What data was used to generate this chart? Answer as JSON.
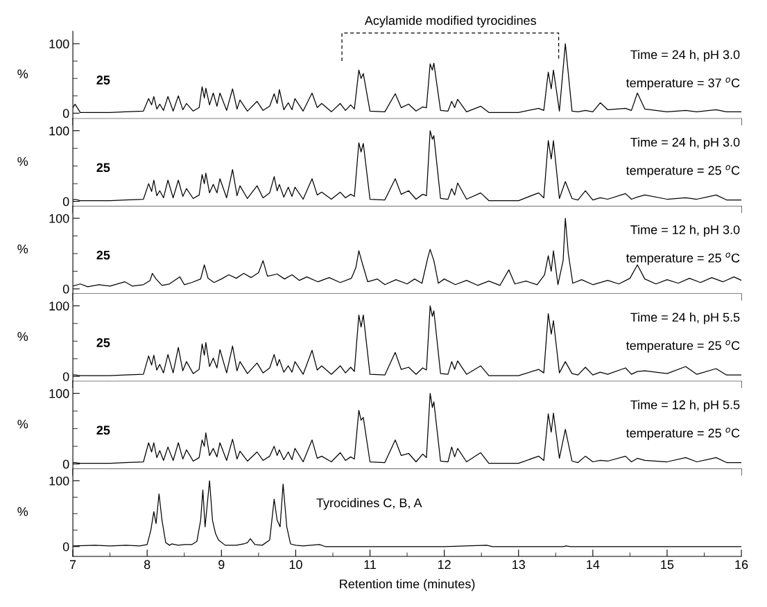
{
  "chart_data": [
    {
      "type": "line",
      "xlim": [
        7,
        16
      ],
      "ylim": [
        -8,
        118
      ],
      "xticks": [
        7,
        {
          "value": 7.5,
          "label": null
        },
        8,
        {
          "value": 8.5,
          "label": null
        },
        9,
        {
          "value": 9.5,
          "label": null
        },
        10,
        {
          "value": 10.5,
          "label": null
        },
        11,
        {
          "value": 11.5,
          "label": null
        },
        12,
        {
          "value": 12.5,
          "label": null
        },
        13,
        {
          "value": 13.5,
          "label": null
        },
        14,
        {
          "value": 14.5,
          "label": null
        },
        15,
        {
          "value": 15.5,
          "label": null
        },
        16
      ],
      "yticks": [
        0,
        {
          "value": 25,
          "label": null
        },
        {
          "value": 50,
          "label": null
        },
        {
          "value": 75,
          "label": null
        },
        100
      ],
      "tick_labels": "y",
      "ylabel": "%",
      "annotations": [
        "25",
        "Time = 24 h, pH 3.0",
        "temperature = 37 $^{o}$C"
      ],
      "title": "Acylamide modified tyrocidines",
      "x": [
        7.0,
        7.03,
        7.1,
        7.5,
        7.7,
        7.95,
        8.02,
        8.06,
        8.09,
        8.13,
        8.17,
        8.22,
        8.28,
        8.35,
        8.42,
        8.48,
        8.53,
        8.62,
        8.7,
        8.74,
        8.77,
        8.79,
        8.84,
        8.89,
        8.94,
        8.98,
        9.07,
        9.15,
        9.21,
        9.25,
        9.35,
        9.48,
        9.56,
        9.65,
        9.71,
        9.75,
        9.78,
        9.84,
        9.9,
        9.95,
        9.99,
        10.1,
        10.22,
        10.29,
        10.35,
        10.48,
        10.6,
        10.67,
        10.74,
        10.79,
        10.85,
        10.88,
        10.91,
        11.0,
        11.2,
        11.34,
        11.42,
        11.52,
        11.62,
        11.71,
        11.76,
        11.81,
        11.84,
        11.86,
        11.95,
        12.05,
        12.1,
        12.14,
        12.18,
        12.3,
        12.49,
        12.6,
        13.0,
        13.27,
        13.34,
        13.4,
        13.44,
        13.47,
        13.55,
        13.63,
        13.72,
        13.8,
        13.9,
        14.0,
        14.1,
        14.2,
        14.44,
        14.52,
        14.6,
        14.7,
        15.0,
        15.25,
        15.4,
        15.66,
        15.8,
        16.0
      ],
      "series": [
        {
          "color": "#000000",
          "values": [
            8,
            13,
            1,
            1,
            2,
            3,
            21,
            12,
            24,
            6,
            13,
            4,
            24,
            3,
            25,
            5,
            14,
            3,
            8,
            38,
            22,
            36,
            12,
            29,
            10,
            29,
            4,
            35,
            6,
            19,
            3,
            17,
            4,
            10,
            28,
            14,
            34,
            5,
            15,
            5,
            21,
            3,
            29,
            8,
            14,
            2,
            14,
            4,
            12,
            6,
            62,
            50,
            57,
            3,
            2,
            28,
            8,
            13,
            3,
            9,
            8,
            71,
            62,
            72,
            4,
            3,
            17,
            8,
            20,
            2,
            10,
            1,
            1,
            7,
            4,
            59,
            35,
            62,
            3,
            100,
            3,
            2,
            4,
            2,
            15,
            5,
            7,
            4,
            29,
            6,
            2,
            4,
            2,
            5,
            2,
            2
          ]
        }
      ]
    },
    {
      "type": "line",
      "xlim": [
        7,
        16
      ],
      "ylim": [
        -7,
        117
      ],
      "xticks": [
        7,
        {
          "value": 7.5,
          "label": null
        },
        8,
        {
          "value": 8.5,
          "label": null
        },
        9,
        {
          "value": 9.5,
          "label": null
        },
        10,
        {
          "value": 10.5,
          "label": null
        },
        11,
        {
          "value": 11.5,
          "label": null
        },
        12,
        {
          "value": 12.5,
          "label": null
        },
        13,
        {
          "value": 13.5,
          "label": null
        },
        14,
        {
          "value": 14.5,
          "label": null
        },
        15,
        {
          "value": 15.5,
          "label": null
        },
        16
      ],
      "yticks": [
        0,
        {
          "value": 25,
          "label": null
        },
        {
          "value": 50,
          "label": null
        },
        {
          "value": 75,
          "label": null
        },
        100
      ],
      "tick_labels": "y",
      "ylabel": "%",
      "annotations": [
        "25",
        "Time = 24 h, pH 3.0",
        "temperature = 25 $^{o}$C"
      ],
      "x": [
        7.0,
        7.03,
        7.1,
        7.5,
        7.7,
        7.95,
        8.02,
        8.06,
        8.09,
        8.13,
        8.17,
        8.22,
        8.28,
        8.35,
        8.42,
        8.48,
        8.53,
        8.62,
        8.7,
        8.74,
        8.77,
        8.79,
        8.84,
        8.89,
        8.94,
        8.98,
        9.07,
        9.15,
        9.21,
        9.25,
        9.35,
        9.48,
        9.56,
        9.65,
        9.71,
        9.75,
        9.78,
        9.84,
        9.9,
        9.95,
        9.99,
        10.1,
        10.22,
        10.29,
        10.35,
        10.48,
        10.6,
        10.67,
        10.74,
        10.79,
        10.85,
        10.88,
        10.91,
        11.0,
        11.2,
        11.34,
        11.42,
        11.52,
        11.62,
        11.71,
        11.76,
        11.81,
        11.84,
        11.86,
        11.95,
        12.05,
        12.1,
        12.14,
        12.18,
        12.3,
        12.49,
        12.6,
        13.0,
        13.27,
        13.34,
        13.4,
        13.44,
        13.47,
        13.55,
        13.63,
        13.72,
        13.8,
        13.9,
        14.0,
        14.1,
        14.2,
        14.44,
        14.52,
        14.6,
        14.7,
        15.0,
        15.25,
        15.4,
        15.66,
        15.8,
        16.0
      ],
      "series": [
        {
          "color": "#000000",
          "values": [
            2,
            3,
            1,
            1,
            2,
            3,
            25,
            14,
            30,
            8,
            15,
            5,
            30,
            5,
            30,
            7,
            18,
            4,
            9,
            38,
            25,
            40,
            12,
            24,
            12,
            32,
            5,
            45,
            8,
            22,
            4,
            22,
            5,
            12,
            35,
            15,
            24,
            6,
            20,
            7,
            20,
            3,
            32,
            9,
            13,
            3,
            13,
            5,
            10,
            7,
            83,
            70,
            82,
            3,
            2,
            32,
            10,
            15,
            3,
            10,
            8,
            100,
            88,
            93,
            4,
            3,
            18,
            9,
            26,
            3,
            12,
            1,
            1,
            12,
            5,
            86,
            60,
            86,
            4,
            28,
            4,
            2,
            15,
            2,
            5,
            3,
            11,
            3,
            6,
            9,
            3,
            5,
            3,
            9,
            2,
            2
          ]
        }
      ]
    },
    {
      "type": "line",
      "xlim": [
        7,
        16
      ],
      "ylim": [
        -7,
        117
      ],
      "xticks": [
        7,
        {
          "value": 7.5,
          "label": null
        },
        8,
        {
          "value": 8.5,
          "label": null
        },
        9,
        {
          "value": 9.5,
          "label": null
        },
        10,
        {
          "value": 10.5,
          "label": null
        },
        11,
        {
          "value": 11.5,
          "label": null
        },
        12,
        {
          "value": 12.5,
          "label": null
        },
        13,
        {
          "value": 13.5,
          "label": null
        },
        14,
        {
          "value": 14.5,
          "label": null
        },
        15,
        {
          "value": 15.5,
          "label": null
        },
        16
      ],
      "yticks": [
        0,
        {
          "value": 25,
          "label": null
        },
        {
          "value": 50,
          "label": null
        },
        {
          "value": 75,
          "label": null
        },
        100
      ],
      "tick_labels": "y",
      "ylabel": "%",
      "annotations": [
        "25",
        "Time = 12 h, pH 3.0",
        "temperature = 25 $^{o}$C"
      ],
      "x": [
        7.0,
        7.1,
        7.2,
        7.35,
        7.5,
        7.7,
        7.8,
        7.95,
        8.04,
        8.07,
        8.12,
        8.2,
        8.3,
        8.44,
        8.5,
        8.6,
        8.72,
        8.77,
        8.82,
        8.9,
        9.0,
        9.1,
        9.2,
        9.3,
        9.4,
        9.5,
        9.56,
        9.62,
        9.75,
        9.85,
        9.95,
        10.05,
        10.15,
        10.3,
        10.45,
        10.6,
        10.75,
        10.81,
        10.85,
        10.9,
        10.97,
        11.1,
        11.2,
        11.35,
        11.5,
        11.6,
        11.7,
        11.78,
        11.81,
        11.86,
        11.92,
        12.0,
        12.15,
        12.3,
        12.45,
        12.6,
        12.75,
        12.87,
        12.95,
        13.1,
        13.25,
        13.35,
        13.4,
        13.44,
        13.47,
        13.53,
        13.6,
        13.63,
        13.67,
        13.73,
        13.85,
        14.0,
        14.2,
        14.35,
        14.5,
        14.6,
        14.7,
        14.85,
        15.0,
        15.15,
        15.3,
        15.45,
        15.6,
        15.75,
        15.9,
        16.0
      ],
      "series": [
        {
          "color": "#000000",
          "values": [
            4,
            7,
            3,
            6,
            4,
            10,
            4,
            6,
            12,
            22,
            14,
            5,
            7,
            17,
            6,
            9,
            14,
            34,
            15,
            9,
            14,
            20,
            15,
            22,
            16,
            23,
            40,
            18,
            21,
            14,
            20,
            12,
            17,
            10,
            16,
            9,
            15,
            30,
            54,
            35,
            10,
            14,
            6,
            13,
            7,
            14,
            8,
            45,
            56,
            40,
            8,
            14,
            6,
            12,
            5,
            11,
            5,
            27,
            7,
            11,
            6,
            20,
            47,
            25,
            54,
            6,
            40,
            100,
            50,
            8,
            13,
            6,
            12,
            7,
            15,
            34,
            14,
            7,
            13,
            8,
            15,
            9,
            16,
            10,
            17,
            12
          ]
        }
      ]
    },
    {
      "type": "line",
      "xlim": [
        7,
        16
      ],
      "ylim": [
        -7,
        117
      ],
      "xticks": [
        7,
        {
          "value": 7.5,
          "label": null
        },
        8,
        {
          "value": 8.5,
          "label": null
        },
        9,
        {
          "value": 9.5,
          "label": null
        },
        10,
        {
          "value": 10.5,
          "label": null
        },
        11,
        {
          "value": 11.5,
          "label": null
        },
        12,
        {
          "value": 12.5,
          "label": null
        },
        13,
        {
          "value": 13.5,
          "label": null
        },
        14,
        {
          "value": 14.5,
          "label": null
        },
        15,
        {
          "value": 15.5,
          "label": null
        },
        16
      ],
      "yticks": [
        0,
        {
          "value": 25,
          "label": null
        },
        {
          "value": 50,
          "label": null
        },
        {
          "value": 75,
          "label": null
        },
        100
      ],
      "tick_labels": "y",
      "ylabel": "%",
      "annotations": [
        "25",
        "Time = 24 h, pH 5.5",
        "temperature = 25 $^{o}$C"
      ],
      "x": [
        7.0,
        7.03,
        7.1,
        7.5,
        7.7,
        7.95,
        8.02,
        8.06,
        8.09,
        8.13,
        8.17,
        8.22,
        8.28,
        8.35,
        8.42,
        8.48,
        8.53,
        8.62,
        8.7,
        8.74,
        8.77,
        8.79,
        8.84,
        8.89,
        8.94,
        8.98,
        9.07,
        9.15,
        9.21,
        9.25,
        9.35,
        9.48,
        9.56,
        9.65,
        9.71,
        9.75,
        9.78,
        9.84,
        9.9,
        9.95,
        9.99,
        10.1,
        10.22,
        10.29,
        10.35,
        10.48,
        10.6,
        10.67,
        10.74,
        10.79,
        10.85,
        10.88,
        10.91,
        11.0,
        11.2,
        11.34,
        11.42,
        11.52,
        11.62,
        11.71,
        11.76,
        11.81,
        11.84,
        11.86,
        11.95,
        12.05,
        12.1,
        12.14,
        12.18,
        12.3,
        12.49,
        12.6,
        13.0,
        13.27,
        13.34,
        13.4,
        13.44,
        13.47,
        13.55,
        13.63,
        13.72,
        13.8,
        13.9,
        14.0,
        14.1,
        14.2,
        14.44,
        14.52,
        14.6,
        14.7,
        15.0,
        15.25,
        15.4,
        15.66,
        15.8,
        16.0
      ],
      "series": [
        {
          "color": "#000000",
          "values": [
            2,
            2,
            1,
            1,
            2,
            3,
            29,
            16,
            30,
            9,
            17,
            5,
            31,
            5,
            41,
            8,
            21,
            4,
            10,
            46,
            30,
            48,
            14,
            26,
            12,
            38,
            5,
            43,
            8,
            21,
            4,
            19,
            5,
            12,
            31,
            15,
            24,
            6,
            15,
            6,
            21,
            3,
            37,
            9,
            15,
            3,
            15,
            5,
            13,
            7,
            87,
            70,
            87,
            3,
            2,
            34,
            10,
            13,
            3,
            12,
            9,
            100,
            85,
            93,
            4,
            3,
            21,
            10,
            22,
            3,
            15,
            1,
            1,
            10,
            5,
            89,
            60,
            79,
            5,
            21,
            4,
            2,
            13,
            2,
            6,
            3,
            12,
            3,
            7,
            8,
            4,
            14,
            3,
            11,
            2,
            2
          ]
        }
      ]
    },
    {
      "type": "line",
      "xlim": [
        7,
        16
      ],
      "ylim": [
        -7,
        117
      ],
      "xticks": [
        7,
        {
          "value": 7.5,
          "label": null
        },
        8,
        {
          "value": 8.5,
          "label": null
        },
        9,
        {
          "value": 9.5,
          "label": null
        },
        10,
        {
          "value": 10.5,
          "label": null
        },
        11,
        {
          "value": 11.5,
          "label": null
        },
        12,
        {
          "value": 12.5,
          "label": null
        },
        13,
        {
          "value": 13.5,
          "label": null
        },
        14,
        {
          "value": 14.5,
          "label": null
        },
        15,
        {
          "value": 15.5,
          "label": null
        },
        16
      ],
      "yticks": [
        0,
        {
          "value": 25,
          "label": null
        },
        {
          "value": 50,
          "label": null
        },
        {
          "value": 75,
          "label": null
        },
        100
      ],
      "tick_labels": "y",
      "ylabel": "%",
      "annotations": [
        "25",
        "Time = 12 h, pH 5.5",
        "temperature = 25 $^{o}$C"
      ],
      "x": [
        7.0,
        7.03,
        7.1,
        7.5,
        7.7,
        7.95,
        8.02,
        8.06,
        8.09,
        8.13,
        8.17,
        8.22,
        8.28,
        8.35,
        8.42,
        8.48,
        8.53,
        8.62,
        8.7,
        8.74,
        8.77,
        8.79,
        8.84,
        8.89,
        8.94,
        8.98,
        9.07,
        9.15,
        9.21,
        9.25,
        9.35,
        9.48,
        9.56,
        9.65,
        9.71,
        9.75,
        9.78,
        9.84,
        9.9,
        9.95,
        9.99,
        10.1,
        10.22,
        10.29,
        10.35,
        10.48,
        10.6,
        10.67,
        10.74,
        10.79,
        10.85,
        10.88,
        10.91,
        11.0,
        11.2,
        11.34,
        11.42,
        11.52,
        11.62,
        11.71,
        11.76,
        11.81,
        11.84,
        11.86,
        11.95,
        12.05,
        12.1,
        12.14,
        12.18,
        12.3,
        12.49,
        12.6,
        13.0,
        13.27,
        13.34,
        13.4,
        13.44,
        13.47,
        13.55,
        13.63,
        13.72,
        13.8,
        13.9,
        14.0,
        14.1,
        14.2,
        14.44,
        14.52,
        14.6,
        14.7,
        15.0,
        15.25,
        15.4,
        15.66,
        15.8,
        16.0
      ],
      "series": [
        {
          "color": "#000000",
          "values": [
            2,
            2,
            1,
            1,
            2,
            3,
            30,
            17,
            30,
            9,
            19,
            5,
            24,
            5,
            30,
            7,
            20,
            4,
            9,
            34,
            25,
            44,
            12,
            22,
            10,
            30,
            5,
            35,
            7,
            18,
            4,
            17,
            5,
            11,
            25,
            12,
            20,
            6,
            17,
            6,
            22,
            3,
            34,
            8,
            11,
            3,
            16,
            5,
            10,
            7,
            76,
            62,
            66,
            3,
            2,
            34,
            12,
            15,
            3,
            14,
            9,
            100,
            80,
            88,
            4,
            3,
            24,
            10,
            22,
            3,
            16,
            1,
            1,
            11,
            5,
            71,
            45,
            72,
            8,
            49,
            4,
            2,
            11,
            3,
            5,
            4,
            11,
            3,
            8,
            5,
            3,
            9,
            3,
            9,
            2,
            2
          ]
        }
      ]
    },
    {
      "type": "line",
      "xlim": [
        7,
        16
      ],
      "ylim": [
        -15,
        118
      ],
      "xticks": [
        7,
        {
          "value": 7.5,
          "label": null
        },
        8,
        {
          "value": 8.5,
          "label": null
        },
        9,
        {
          "value": 9.5,
          "label": null
        },
        10,
        {
          "value": 10.5,
          "label": null
        },
        11,
        {
          "value": 11.5,
          "label": null
        },
        12,
        {
          "value": 12.5,
          "label": null
        },
        13,
        {
          "value": 13.5,
          "label": null
        },
        14,
        {
          "value": 14.5,
          "label": null
        },
        15,
        {
          "value": 15.5,
          "label": null
        },
        16
      ],
      "yticks": [
        0,
        {
          "value": 25,
          "label": null
        },
        {
          "value": 50,
          "label": null
        },
        {
          "value": 75,
          "label": null
        },
        100
      ],
      "ylabel": "%",
      "xlabel": "Retention time (minutes)",
      "annotations": [
        "Tyrocidines C, B, A"
      ],
      "x": [
        7.0,
        7.3,
        7.5,
        7.72,
        7.9,
        8.0,
        8.05,
        8.09,
        8.12,
        8.16,
        8.2,
        8.25,
        8.3,
        8.33,
        8.42,
        8.5,
        8.6,
        8.67,
        8.72,
        8.75,
        8.78,
        8.84,
        8.88,
        8.92,
        8.96,
        9.05,
        9.2,
        9.3,
        9.35,
        9.39,
        9.45,
        9.55,
        9.65,
        9.71,
        9.75,
        9.79,
        9.83,
        9.88,
        9.93,
        10.0,
        10.1,
        10.2,
        10.32,
        10.4,
        11.0,
        12.0,
        12.57,
        12.65,
        13.6,
        13.64,
        13.7,
        15.0,
        16.0
      ],
      "series": [
        {
          "color": "#000000",
          "values": [
            1,
            2,
            1,
            2,
            1,
            3,
            25,
            53,
            35,
            80,
            40,
            6,
            2,
            4,
            2,
            3,
            3,
            8,
            40,
            86,
            30,
            100,
            40,
            20,
            10,
            2,
            2,
            4,
            6,
            12,
            3,
            2,
            10,
            72,
            40,
            30,
            95,
            30,
            4,
            2,
            1,
            2,
            3,
            0,
            0,
            0,
            2,
            0,
            0,
            1,
            0,
            0,
            0
          ]
        }
      ]
    }
  ]
}
